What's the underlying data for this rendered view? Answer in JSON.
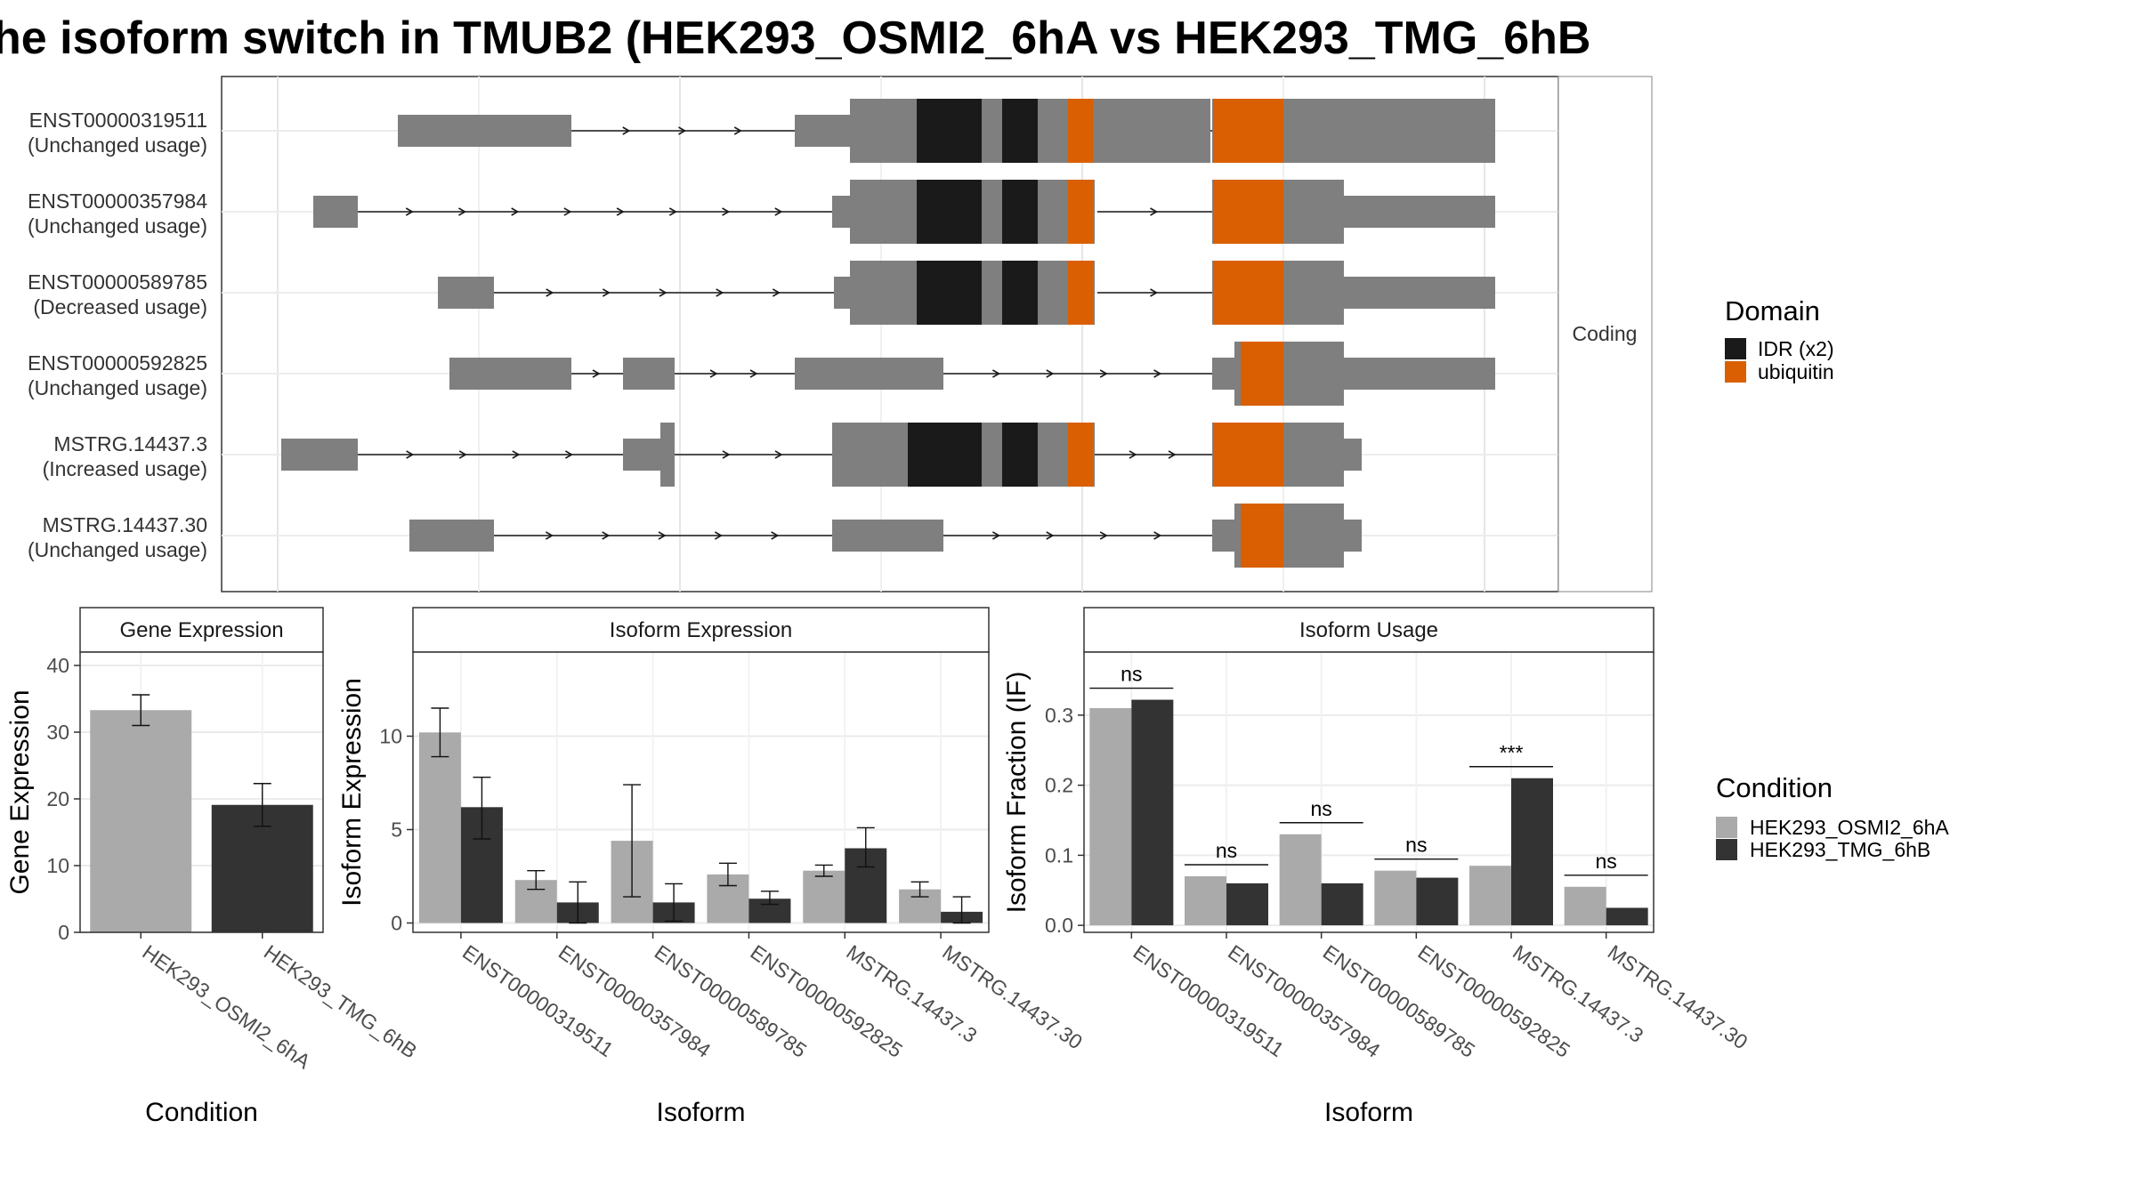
{
  "title": "he isoform switch in TMUB2 (HEK293_OSMI2_6hA vs HEK293_TMG_6hB",
  "colors": {
    "exon": "#7f7f7f",
    "idr": "#1a1a1a",
    "ubiquitin": "#d95f02",
    "cond_a": "#aaaaaa",
    "cond_b": "#333333"
  },
  "structure": {
    "facet_label": "Coding",
    "transcripts": [
      {
        "id": "ENST00000319511",
        "usage": "(Unchanged usage)",
        "utr": [
          [
            1430,
            3000
          ],
          [
            3030,
            3280
          ],
          [
            4920,
            5090
          ],
          [
            6680,
            7550
          ]
        ],
        "cds": [
          [
            3280,
            3860
          ],
          [
            3860,
            4150
          ],
          [
            5090,
            6680
          ]
        ],
        "domains": [
          {
            "type": "idr",
            "range": [
              3860,
              4120
            ]
          },
          {
            "type": "idr",
            "range": [
              4150,
              4300
            ]
          },
          {
            "type": "ubiquitin",
            "range": [
              4430,
              4430
            ]
          }
        ]
      },
      {
        "id": "ENST00000357984",
        "usage": "(Unchanged usage)",
        "utr": [
          [
            600,
            1000
          ],
          [
            3330,
            3280
          ],
          [
            6680,
            7550
          ]
        ],
        "cds": [
          [
            3330,
            6680
          ]
        ],
        "domains": [
          {
            "type": "idr",
            "range": [
              3860,
              4150
            ]
          },
          {
            "type": "idr",
            "range": [
              4340,
              4620
            ]
          },
          {
            "type": "ubiquitin",
            "range": [
              4920,
              5130
            ]
          },
          {
            "type": "ubiquitin",
            "range": [
              6030,
              6640
            ]
          }
        ]
      }
    ]
  },
  "panels": {
    "gene": {
      "strip": "Gene Expression",
      "ylabel": "Gene Expression",
      "xlabel": "Condition",
      "yticks": [
        "0",
        "10",
        "20",
        "30",
        "40"
      ]
    },
    "iso": {
      "strip": "Isoform Expression",
      "ylabel": "Isoform Expression",
      "xlabel": "Isoform",
      "yticks": [
        "0",
        "5",
        "10"
      ]
    },
    "usage": {
      "strip": "Isoform Usage",
      "ylabel": "Isoform Fraction (IF)",
      "xlabel": "Isoform",
      "yticks": [
        "0.0",
        "0.1",
        "0.2",
        "0.3"
      ]
    }
  },
  "legend": {
    "domain_title": "Domain",
    "domain_items": [
      "IDR (x2)",
      "ubiquitin"
    ],
    "condition_title": "Condition",
    "condition_items": [
      "HEK293_OSMI2_6hA",
      "HEK293_TMG_6hB"
    ]
  },
  "chart_data": [
    {
      "type": "bar",
      "name": "Gene Expression",
      "categories": [
        "HEK293_OSMI2_6hA",
        "HEK293_TMG_6hB"
      ],
      "values": [
        33.3,
        19.1
      ],
      "errors": [
        [
          31.0,
          35.6
        ],
        [
          15.9,
          22.3
        ]
      ],
      "ylim": [
        0,
        42
      ]
    },
    {
      "type": "bar",
      "name": "Isoform Expression",
      "categories": [
        "ENST00000319511",
        "ENST00000357984",
        "ENST00000589785",
        "ENST00000592825",
        "MSTRG.14437.3",
        "MSTRG.14437.30"
      ],
      "series": [
        {
          "values": [
            10.2,
            2.3,
            4.4,
            2.6,
            2.8,
            1.8
          ],
          "errors": [
            [
              8.9,
              11.5
            ],
            [
              1.8,
              2.8
            ],
            [
              1.4,
              7.4
            ],
            [
              2.0,
              3.2
            ],
            [
              2.5,
              3.1
            ],
            [
              1.4,
              2.2
            ]
          ]
        },
        {
          "values": [
            6.2,
            1.1,
            1.1,
            1.3,
            4.0,
            0.6
          ],
          "errors": [
            [
              4.5,
              7.8
            ],
            [
              0.0,
              2.2
            ],
            [
              0.1,
              2.1
            ],
            [
              1.0,
              1.7
            ],
            [
              3.0,
              5.1
            ],
            [
              0.0,
              1.4
            ]
          ]
        }
      ],
      "ylim": [
        -0.5,
        14.5
      ]
    },
    {
      "type": "bar",
      "name": "Isoform Usage",
      "categories": [
        "ENST00000319511",
        "ENST00000357984",
        "ENST00000589785",
        "ENST00000592825",
        "MSTRG.14437.3",
        "MSTRG.14437.30"
      ],
      "series": [
        {
          "values": [
            0.31,
            0.07,
            0.13,
            0.078,
            0.085,
            0.055
          ]
        },
        {
          "values": [
            0.322,
            0.06,
            0.06,
            0.068,
            0.21,
            0.025
          ]
        }
      ],
      "significance": [
        "ns",
        "ns",
        "ns",
        "ns",
        "***",
        "ns"
      ],
      "ylim": [
        -0.01,
        0.39
      ]
    }
  ]
}
